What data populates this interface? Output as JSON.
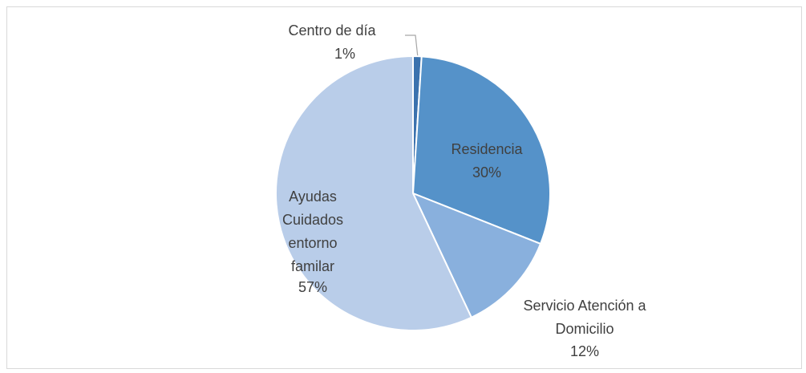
{
  "chart_data": {
    "type": "pie",
    "categories": [
      "Centro de día",
      "Residencia",
      "Servicio Atención a Domicilio",
      "Ayudas Cuidados entorno familar"
    ],
    "values": [
      1,
      30,
      12,
      57
    ],
    "value_labels": [
      "1%",
      "30%",
      "12%",
      "57%"
    ],
    "colors": [
      "#3b72ae",
      "#5592c9",
      "#89b0dd",
      "#b9cde9"
    ]
  }
}
